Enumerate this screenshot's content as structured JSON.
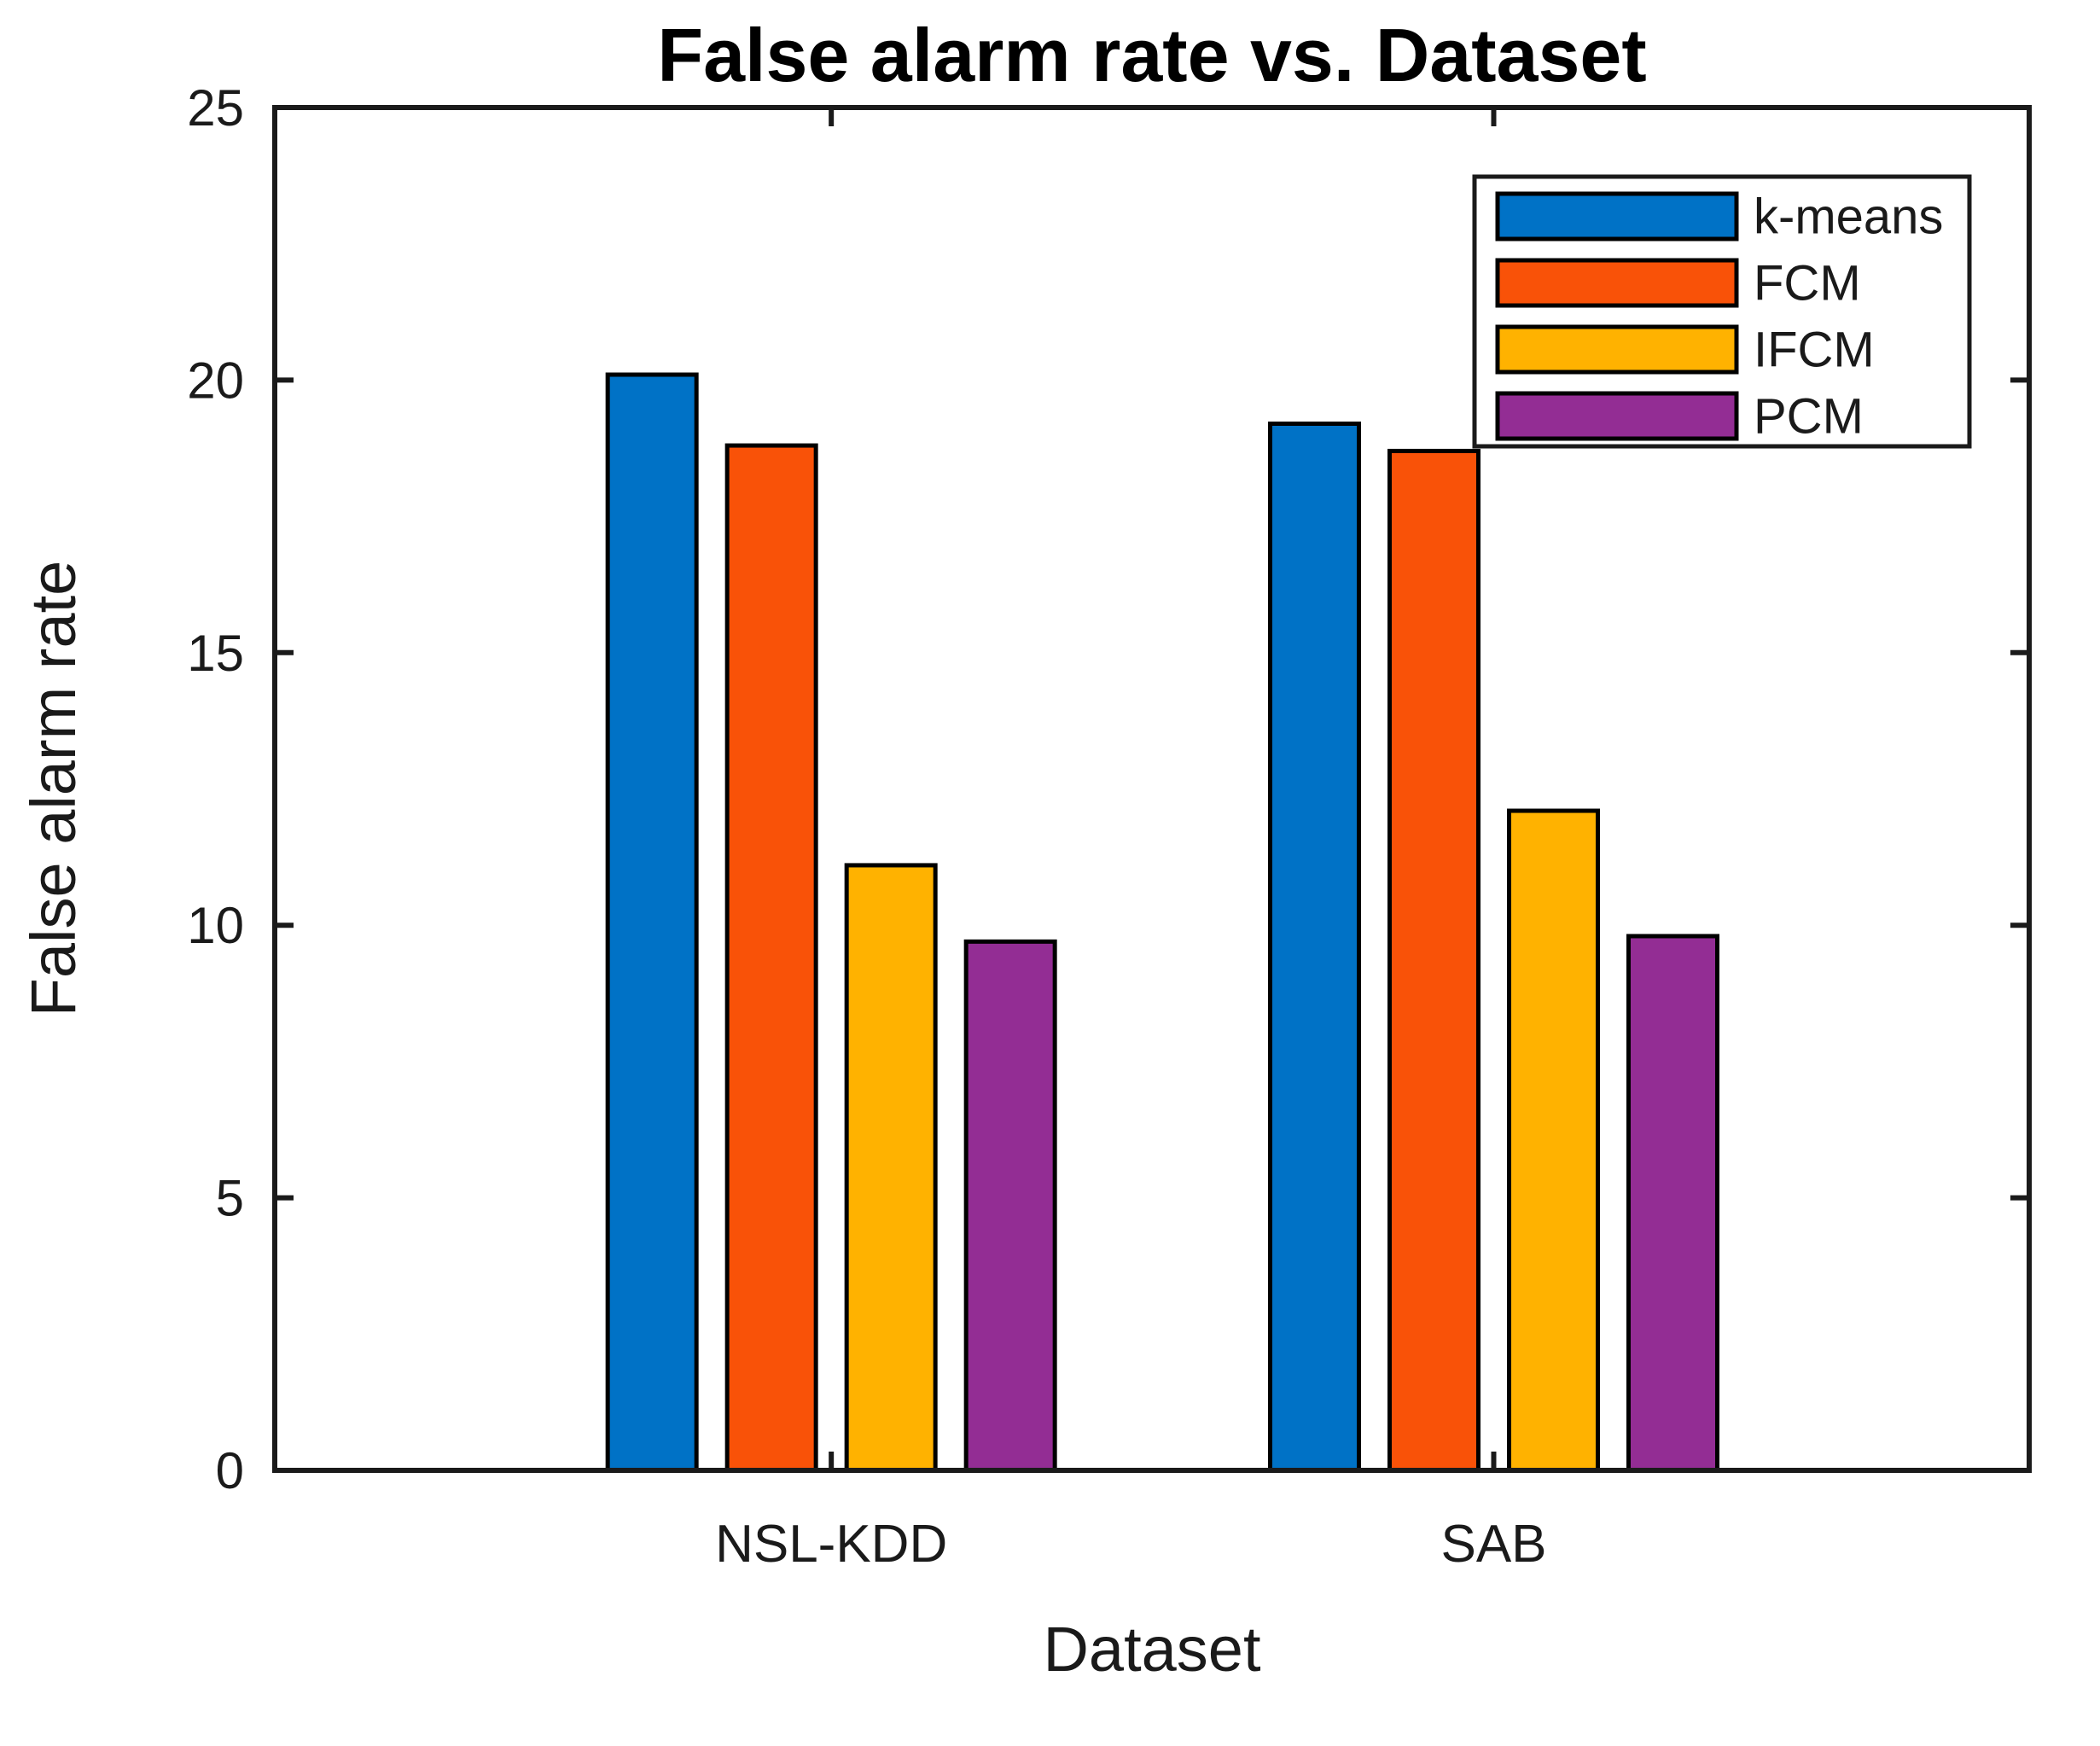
{
  "figure": {
    "background": "#ffffff",
    "axis_color": "#1a1a1a",
    "text_color": "#1a1a1a"
  },
  "chart_data": {
    "type": "bar",
    "title": "False alarm rate vs. Dataset",
    "xlabel": "Dataset",
    "ylabel": "False alarm rate",
    "categories": [
      "NSL-KDD",
      "SAB"
    ],
    "series": [
      {
        "name": "k-means",
        "color": "#0072C6",
        "values": [
          20.1,
          19.2
        ]
      },
      {
        "name": "FCM",
        "color": "#F95208",
        "values": [
          18.8,
          18.7
        ]
      },
      {
        "name": "IFCM",
        "color": "#FFB200",
        "values": [
          11.1,
          12.1
        ]
      },
      {
        "name": "PCM",
        "color": "#932D94",
        "values": [
          9.7,
          9.8
        ]
      }
    ],
    "ylim": [
      0,
      25
    ],
    "yticks": [
      0,
      5,
      10,
      15,
      20,
      25
    ],
    "grid": false,
    "bar_edge_color": "#000000",
    "legend_position": "top-right",
    "legend_entries": [
      "k-means",
      "FCM",
      "IFCM",
      "PCM"
    ]
  }
}
